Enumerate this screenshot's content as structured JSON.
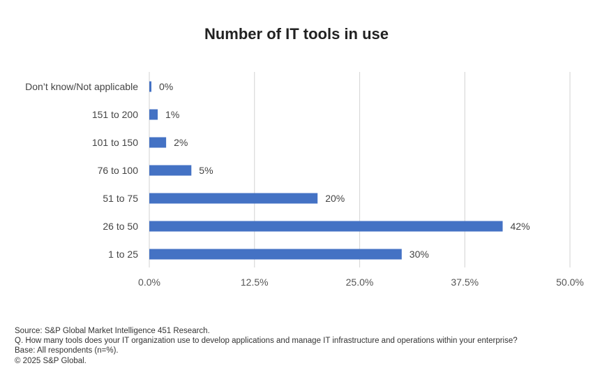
{
  "chart_data": {
    "type": "bar",
    "orientation": "horizontal",
    "title": "Number of IT tools in use",
    "categories": [
      "Don’t know/Not applicable",
      "151 to 200",
      "101 to 150",
      "76 to 100",
      "51 to 75",
      "26 to 50",
      "1 to 25"
    ],
    "values": [
      0,
      1,
      2,
      5,
      20,
      42,
      30
    ],
    "value_labels": [
      "0%",
      "1%",
      "2%",
      "5%",
      "20%",
      "42%",
      "30%"
    ],
    "xlim": [
      0,
      50
    ],
    "xticks": [
      0,
      12.5,
      25,
      37.5,
      50
    ],
    "xtick_labels": [
      "0.0%",
      "12.5%",
      "25.0%",
      "37.5%",
      "50.0%"
    ],
    "grid": true,
    "bar_color": "#4472C4",
    "grid_color": "#D9D9D9"
  },
  "footer": {
    "source": "Source: S&P Global Market Intelligence 451 Research.",
    "question": "Q. How many tools does your IT organization use to develop applications and manage IT infrastructure and operations within your enterprise?",
    "base": "Base: All respondents (n=%).",
    "copyright": "© 2025 S&P Global."
  }
}
